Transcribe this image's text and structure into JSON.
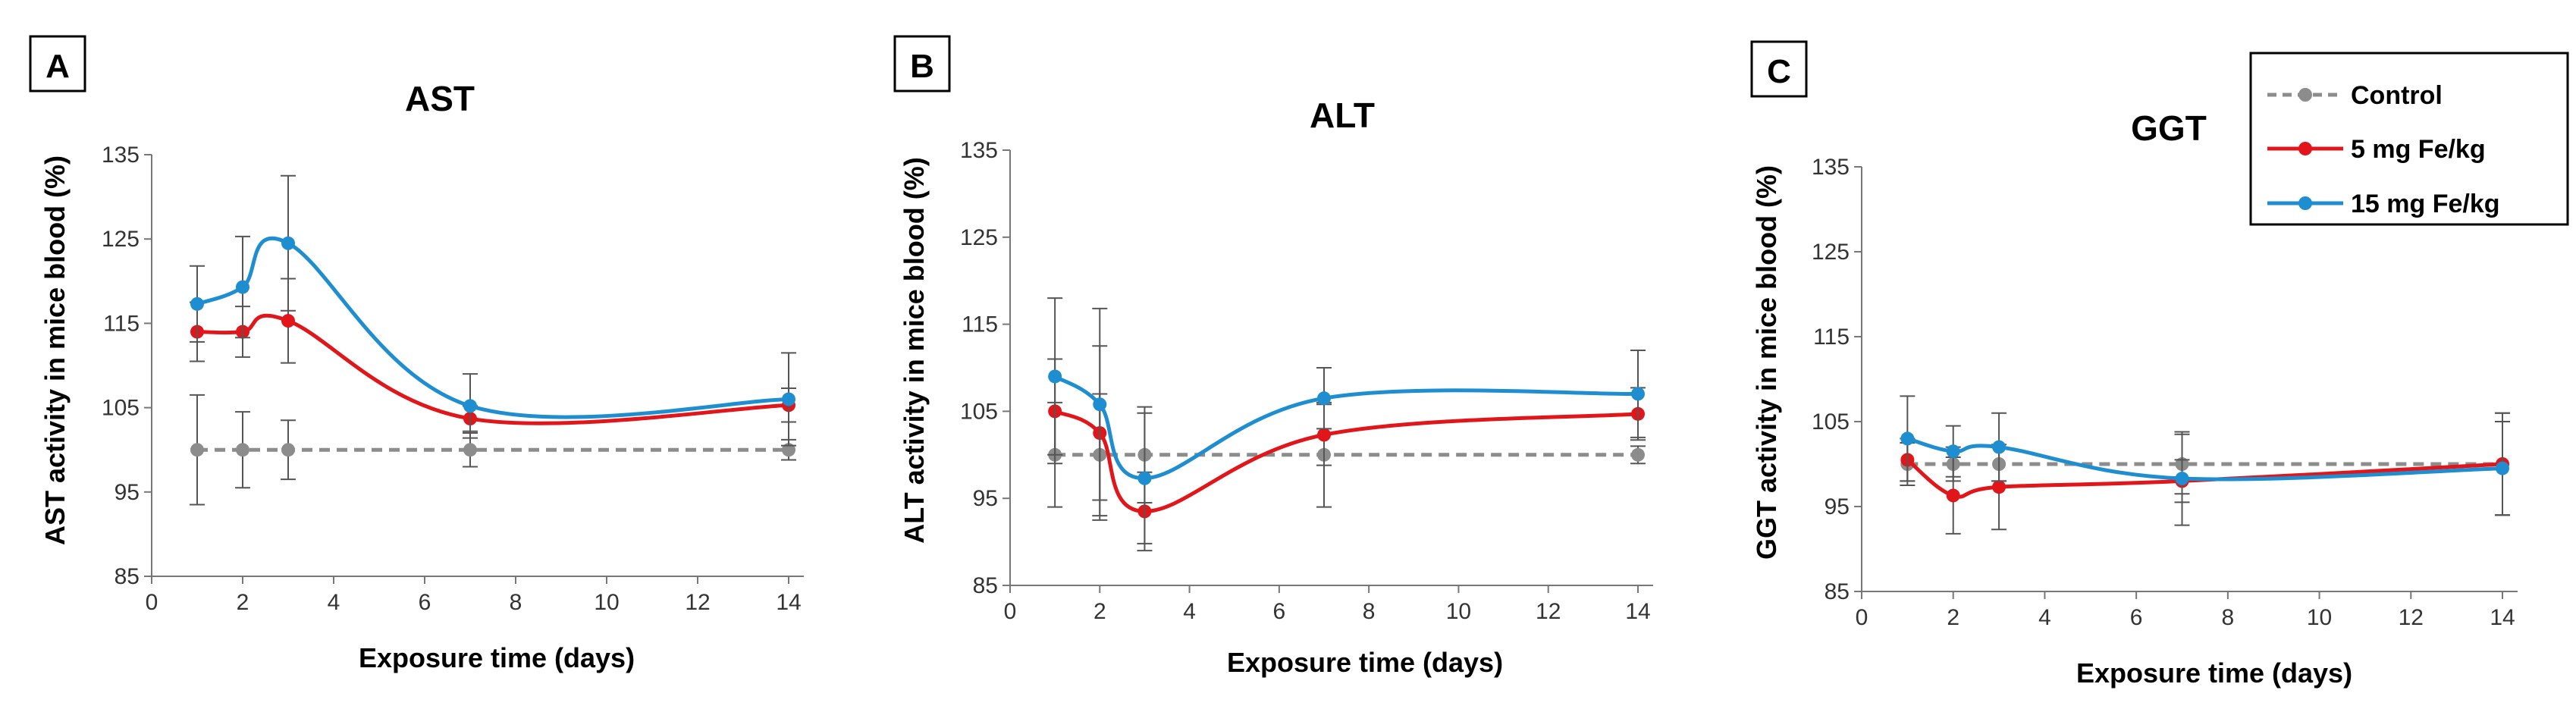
{
  "figure": {
    "legend": [
      {
        "label": "Control",
        "color": "#8c8c8c",
        "dashed": true
      },
      {
        "label": "5 mg Fe/kg",
        "color": "#e0161b",
        "dashed": false
      },
      {
        "label": "15 mg Fe/kg",
        "color": "#1f8ed1",
        "dashed": false
      }
    ]
  },
  "chart_data": [
    {
      "type": "line",
      "panel": "A",
      "title": "AST",
      "xlabel": "Exposure time (days)",
      "ylabel": "AST activity in mice blood (%)",
      "xlim": [
        0,
        14
      ],
      "ylim": [
        85,
        135
      ],
      "x_ticks": [
        0,
        2,
        4,
        6,
        8,
        10,
        12,
        14
      ],
      "y_ticks": [
        85,
        95,
        105,
        115,
        125,
        135
      ],
      "x": [
        1,
        2,
        3,
        7,
        14
      ],
      "series": [
        {
          "name": "Control",
          "color": "#8c8c8c",
          "dashed": true,
          "values": [
            100,
            100,
            100,
            100,
            100
          ],
          "errors": [
            6.5,
            4.5,
            3.5,
            2,
            1.2
          ]
        },
        {
          "name": "5 mg Fe/kg",
          "color": "#e0161b",
          "dashed": false,
          "values": [
            114,
            114,
            115.3,
            103.7,
            105.3
          ],
          "errors": [
            3.5,
            3,
            5,
            1.5,
            2
          ]
        },
        {
          "name": "15 mg Fe/kg",
          "color": "#1f8ed1",
          "dashed": false,
          "values": [
            117.3,
            119.3,
            124.5,
            105.2,
            106
          ],
          "errors": [
            4.5,
            6,
            8,
            3.8,
            5.5
          ]
        }
      ]
    },
    {
      "type": "line",
      "panel": "B",
      "title": "ALT",
      "xlabel": "Exposure time (days)",
      "ylabel": "ALT activity in mice blood (%)",
      "xlim": [
        0,
        14
      ],
      "ylim": [
        85,
        135
      ],
      "x_ticks": [
        0,
        2,
        4,
        6,
        8,
        10,
        12,
        14
      ],
      "y_ticks": [
        85,
        95,
        105,
        115,
        125,
        135
      ],
      "x": [
        1,
        2,
        3,
        7,
        14
      ],
      "series": [
        {
          "name": "Control",
          "color": "#8c8c8c",
          "dashed": true,
          "values": [
            100,
            100,
            100,
            100,
            100
          ],
          "errors": [
            6,
            7,
            5.5,
            6,
            1
          ]
        },
        {
          "name": "5 mg Fe/kg",
          "color": "#e0161b",
          "dashed": false,
          "values": [
            105,
            102.5,
            93.5,
            102.3,
            104.7
          ],
          "errors": [
            6,
            10,
            4.5,
            3.5,
            3
          ]
        },
        {
          "name": "15 mg Fe/kg",
          "color": "#1f8ed1",
          "dashed": false,
          "values": [
            109,
            105.8,
            97.3,
            106.5,
            107
          ],
          "errors": [
            9,
            11,
            7.5,
            3.5,
            5
          ]
        }
      ]
    },
    {
      "type": "line",
      "panel": "C",
      "title": "GGT",
      "xlabel": "Exposure time (days)",
      "ylabel": "GGT activity in mice blood (%)",
      "xlim": [
        0,
        14
      ],
      "ylim": [
        85,
        135
      ],
      "x_ticks": [
        0,
        2,
        4,
        6,
        8,
        10,
        12,
        14
      ],
      "y_ticks": [
        85,
        95,
        105,
        115,
        125,
        135
      ],
      "x": [
        1,
        2,
        3,
        7,
        14
      ],
      "series": [
        {
          "name": "Control",
          "color": "#8c8c8c",
          "dashed": true,
          "values": [
            100,
            100,
            100,
            100,
            100
          ],
          "errors": [
            2.5,
            2,
            2,
            3.5,
            6
          ]
        },
        {
          "name": "5 mg Fe/kg",
          "color": "#e0161b",
          "dashed": false,
          "values": [
            100.5,
            96.3,
            97.3,
            98,
            100
          ],
          "errors": [
            2.5,
            4.5,
            5,
            2.5,
            6
          ]
        },
        {
          "name": "15 mg Fe/kg",
          "color": "#1f8ed1",
          "dashed": false,
          "values": [
            103,
            101.5,
            102,
            98.3,
            99.5
          ],
          "errors": [
            5,
            3,
            4,
            5.5,
            5.5
          ]
        }
      ]
    }
  ]
}
